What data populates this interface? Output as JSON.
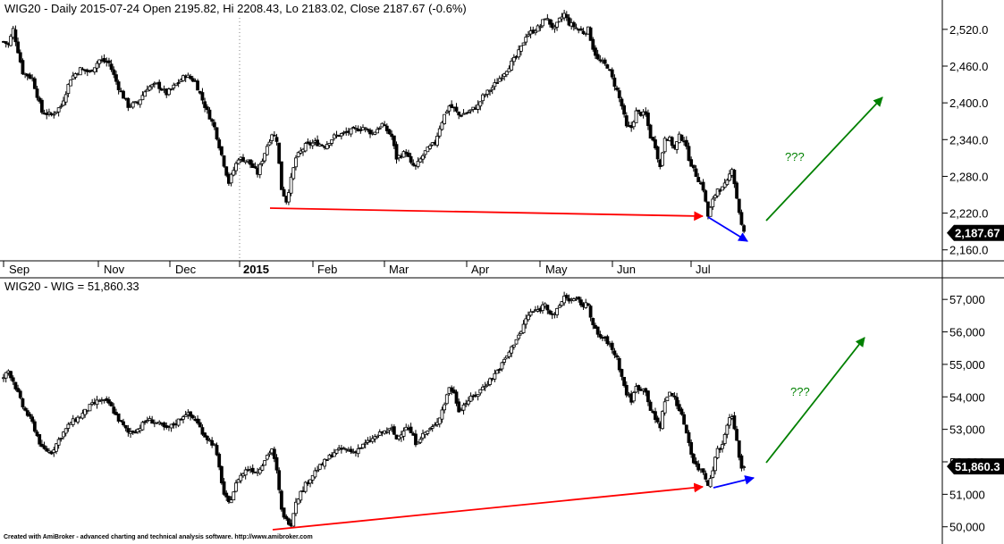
{
  "colors": {
    "background": "#ffffff",
    "candle": "#000000",
    "grid": "#808080",
    "red_line": "#ff0000",
    "blue_arrow": "#0000ff",
    "green_arrow": "#008000",
    "badge_bg": "#000000",
    "badge_text": "#ffffff"
  },
  "top_panel": {
    "title": "WIG20 - Daily 2015-07-24 Open 2195.82, Hi 2208.43, Lo 2183.02, Close 2187.67 (-0.6%)",
    "last_badge": "2,187.67",
    "question_marks": "???"
  },
  "bottom_panel": {
    "title": "WIG20 - WIG = 51,860.33",
    "last_badge": "51,860.3",
    "question_marks": "???"
  },
  "date_axis": [
    "Sep",
    "Nov",
    "Dec",
    "2015",
    "Feb",
    "Mar",
    "Apr",
    "May",
    "Jun",
    "Jul"
  ],
  "footer": "Created with AmiBroker - advanced charting and technical analysis software. http://www.amibroker.com",
  "chart_data": [
    {
      "type": "candlestick",
      "title": "WIG20 - Daily 2015-07-24 Open 2195.82, Hi 2208.43, Lo 2183.02, Close 2187.67 (-0.6%)",
      "y_ticks": [
        "2,520.0",
        "2,460.0",
        "2,400.0",
        "2,340.0",
        "2,280.0",
        "2,220.0",
        "2,160.0"
      ],
      "y_range": [
        2145,
        2565
      ],
      "last_value": 2187.67,
      "last_bar": {
        "open": 2195.82,
        "high": 2208.43,
        "low": 2183.02,
        "close": 2187.67
      },
      "path": [
        [
          0,
          2500
        ],
        [
          2,
          2495
        ],
        [
          4,
          2520
        ],
        [
          8,
          2450
        ],
        [
          12,
          2440
        ],
        [
          16,
          2385
        ],
        [
          20,
          2380
        ],
        [
          24,
          2395
        ],
        [
          28,
          2440
        ],
        [
          32,
          2455
        ],
        [
          36,
          2450
        ],
        [
          40,
          2470
        ],
        [
          44,
          2465
        ],
        [
          48,
          2425
        ],
        [
          52,
          2395
        ],
        [
          56,
          2400
        ],
        [
          60,
          2425
        ],
        [
          64,
          2430
        ],
        [
          68,
          2415
        ],
        [
          72,
          2430
        ],
        [
          76,
          2445
        ],
        [
          80,
          2435
        ],
        [
          84,
          2395
        ],
        [
          88,
          2360
        ],
        [
          92,
          2300
        ],
        [
          94,
          2270
        ],
        [
          98,
          2310
        ],
        [
          102,
          2305
        ],
        [
          106,
          2285
        ],
        [
          110,
          2330
        ],
        [
          112,
          2350
        ],
        [
          114,
          2340
        ],
        [
          116,
          2260
        ],
        [
          118,
          2240
        ],
        [
          122,
          2310
        ],
        [
          126,
          2330
        ],
        [
          130,
          2335
        ],
        [
          134,
          2330
        ],
        [
          138,
          2345
        ],
        [
          142,
          2350
        ],
        [
          146,
          2355
        ],
        [
          150,
          2360
        ],
        [
          154,
          2350
        ],
        [
          158,
          2365
        ],
        [
          162,
          2345
        ],
        [
          164,
          2310
        ],
        [
          168,
          2320
        ],
        [
          170,
          2300
        ],
        [
          172,
          2295
        ],
        [
          176,
          2320
        ],
        [
          180,
          2335
        ],
        [
          182,
          2360
        ],
        [
          184,
          2380
        ],
        [
          186,
          2395
        ],
        [
          188,
          2390
        ],
        [
          190,
          2380
        ],
        [
          194,
          2385
        ],
        [
          198,
          2395
        ],
        [
          200,
          2410
        ],
        [
          204,
          2425
        ],
        [
          208,
          2445
        ],
        [
          212,
          2465
        ],
        [
          214,
          2475
        ],
        [
          216,
          2490
        ],
        [
          218,
          2510
        ],
        [
          220,
          2515
        ],
        [
          224,
          2525
        ],
        [
          226,
          2540
        ],
        [
          228,
          2530
        ],
        [
          230,
          2520
        ],
        [
          232,
          2535
        ],
        [
          234,
          2545
        ],
        [
          236,
          2530
        ],
        [
          240,
          2520
        ],
        [
          242,
          2515
        ],
        [
          244,
          2520
        ],
        [
          246,
          2490
        ],
        [
          248,
          2470
        ],
        [
          252,
          2460
        ],
        [
          256,
          2420
        ],
        [
          258,
          2395
        ],
        [
          260,
          2360
        ],
        [
          262,
          2360
        ],
        [
          264,
          2385
        ],
        [
          268,
          2380
        ],
        [
          270,
          2345
        ],
        [
          272,
          2330
        ],
        [
          274,
          2295
        ],
        [
          276,
          2345
        ],
        [
          278,
          2340
        ],
        [
          280,
          2325
        ],
        [
          282,
          2345
        ],
        [
          284,
          2340
        ],
        [
          286,
          2310
        ],
        [
          288,
          2290
        ],
        [
          290,
          2275
        ],
        [
          292,
          2260
        ],
        [
          294,
          2215
        ],
        [
          296,
          2240
        ],
        [
          298,
          2260
        ],
        [
          300,
          2260
        ],
        [
          302,
          2270
        ],
        [
          304,
          2295
        ],
        [
          306,
          2245
        ],
        [
          308,
          2200
        ],
        [
          309,
          2187.67
        ]
      ]
    },
    {
      "type": "candlestick",
      "title": "WIG20 - WIG = 51,860.33",
      "y_ticks": [
        "57,000",
        "56,000",
        "55,000",
        "54,000",
        "53,000",
        "52,000",
        "51,000",
        "50,000"
      ],
      "y_range": [
        49800,
        57500
      ],
      "last_value": 51860.33,
      "path": [
        [
          0,
          54600
        ],
        [
          2,
          54800
        ],
        [
          4,
          54500
        ],
        [
          8,
          53700
        ],
        [
          12,
          53200
        ],
        [
          16,
          52400
        ],
        [
          20,
          52300
        ],
        [
          24,
          52800
        ],
        [
          28,
          53200
        ],
        [
          32,
          53400
        ],
        [
          36,
          53700
        ],
        [
          40,
          53900
        ],
        [
          44,
          53800
        ],
        [
          48,
          53300
        ],
        [
          52,
          52900
        ],
        [
          56,
          53000
        ],
        [
          60,
          53300
        ],
        [
          64,
          53200
        ],
        [
          68,
          53000
        ],
        [
          72,
          53200
        ],
        [
          76,
          53500
        ],
        [
          80,
          53300
        ],
        [
          84,
          52800
        ],
        [
          88,
          52500
        ],
        [
          90,
          51800
        ],
        [
          92,
          51000
        ],
        [
          94,
          50700
        ],
        [
          98,
          51500
        ],
        [
          102,
          51800
        ],
        [
          106,
          51700
        ],
        [
          110,
          52200
        ],
        [
          112,
          52400
        ],
        [
          114,
          51700
        ],
        [
          116,
          50500
        ],
        [
          118,
          50200
        ],
        [
          120,
          50100
        ],
        [
          122,
          50800
        ],
        [
          126,
          51300
        ],
        [
          130,
          51700
        ],
        [
          134,
          52000
        ],
        [
          138,
          52300
        ],
        [
          142,
          52400
        ],
        [
          146,
          52300
        ],
        [
          150,
          52500
        ],
        [
          154,
          52700
        ],
        [
          158,
          52900
        ],
        [
          162,
          53000
        ],
        [
          164,
          52700
        ],
        [
          168,
          53100
        ],
        [
          170,
          52900
        ],
        [
          172,
          52600
        ],
        [
          176,
          52900
        ],
        [
          180,
          53100
        ],
        [
          182,
          53400
        ],
        [
          184,
          53800
        ],
        [
          186,
          54300
        ],
        [
          188,
          54100
        ],
        [
          190,
          53600
        ],
        [
          194,
          53900
        ],
        [
          198,
          54100
        ],
        [
          200,
          54300
        ],
        [
          204,
          54600
        ],
        [
          208,
          55000
        ],
        [
          212,
          55500
        ],
        [
          214,
          55800
        ],
        [
          216,
          56000
        ],
        [
          218,
          56400
        ],
        [
          220,
          56600
        ],
        [
          224,
          56700
        ],
        [
          226,
          56900
        ],
        [
          228,
          56600
        ],
        [
          230,
          56500
        ],
        [
          232,
          56800
        ],
        [
          234,
          57100
        ],
        [
          236,
          57000
        ],
        [
          240,
          56950
        ],
        [
          242,
          56800
        ],
        [
          244,
          56850
        ],
        [
          246,
          56200
        ],
        [
          248,
          55900
        ],
        [
          252,
          55700
        ],
        [
          256,
          55200
        ],
        [
          258,
          54600
        ],
        [
          260,
          54100
        ],
        [
          262,
          53900
        ],
        [
          264,
          54300
        ],
        [
          268,
          54200
        ],
        [
          270,
          53600
        ],
        [
          272,
          53300
        ],
        [
          274,
          53100
        ],
        [
          276,
          53900
        ],
        [
          278,
          54100
        ],
        [
          280,
          54000
        ],
        [
          282,
          53600
        ],
        [
          284,
          53200
        ],
        [
          286,
          52600
        ],
        [
          288,
          52000
        ],
        [
          290,
          51800
        ],
        [
          292,
          51700
        ],
        [
          294,
          51300
        ],
        [
          296,
          51800
        ],
        [
          298,
          52400
        ],
        [
          300,
          52500
        ],
        [
          302,
          53200
        ],
        [
          304,
          53400
        ],
        [
          306,
          52600
        ],
        [
          308,
          51800
        ],
        [
          309,
          51860.33
        ]
      ]
    }
  ]
}
